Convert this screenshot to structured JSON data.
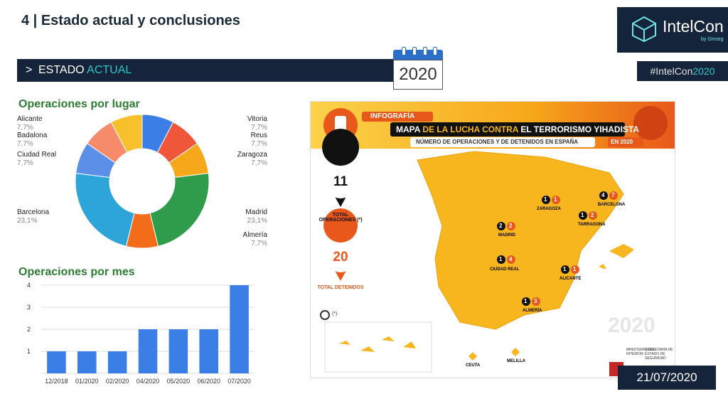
{
  "header": {
    "title": "4  |  Estado actual y conclusiones",
    "logo_name": "IntelCon",
    "logo_by": "by Ginseg"
  },
  "section_bar": {
    "chevron": ">",
    "label_white": "ESTADO ",
    "label_accent": "ACTUAL"
  },
  "hashtag": {
    "text": "#IntelCon",
    "year": "2020"
  },
  "calendar": {
    "year": "2020"
  },
  "pie": {
    "title": "Operaciones por lugar",
    "labels": [
      {
        "name": "Alicante",
        "pct": "7,7%"
      },
      {
        "name": "Badalona",
        "pct": "7,7%"
      },
      {
        "name": "Ciudad Real",
        "pct": "7,7%"
      },
      {
        "name": "Barcelona",
        "pct": "23,1%"
      },
      {
        "name": "Vitoria",
        "pct": "7,7%"
      },
      {
        "name": "Reus",
        "pct": "7,7%"
      },
      {
        "name": "Zaragoza",
        "pct": "7,7%"
      },
      {
        "name": "Madrid",
        "pct": "23,1%"
      },
      {
        "name": "Almería",
        "pct": "7,7%"
      }
    ]
  },
  "bars": {
    "title": "Operaciones por mes"
  },
  "map": {
    "infografia": "INFOGRAFÍA",
    "headline_a": "MAPA ",
    "headline_b": "DE LA LUCHA CONTRA ",
    "headline_c": "EL TERRORISMO YIHADISTA",
    "sub": "NÚMERO DE OPERACIONES Y DE DETENIDOS EN ESPAÑA",
    "sub_year": "EN 2020",
    "ops_num": "11",
    "ops_label": "TOTAL OPERACIONES (*)",
    "det_num": "20",
    "det_label": "TOTAL DETENIDOS",
    "note": "(*)",
    "big_year": "2020",
    "zaragoza": "ZARAGOZA",
    "barcelona": "BARCELONA",
    "tarragona": "TARRAGONA",
    "madrid": "MADRID",
    "ciudad_real": "CIUDAD REAL",
    "alicante": "ALICANTE",
    "almeria": "ALMERÍA",
    "ceuta": "CEUTA",
    "melilla": "MELILLA",
    "ministerio": "MINISTERIO DEL INTERIOR",
    "secretaria": "SECRETARÍA DE ESTADO DE SEGURIDAD",
    "pins": [
      {
        "key": "zaragoza",
        "ops": "1",
        "det": "1"
      },
      {
        "key": "barcelona",
        "ops": "4",
        "det": "7"
      },
      {
        "key": "tarragona",
        "ops": "1",
        "det": "2"
      },
      {
        "key": "madrid",
        "ops": "2",
        "det": "2"
      },
      {
        "key": "ciudad_real",
        "ops": "1",
        "det": "4"
      },
      {
        "key": "alicante",
        "ops": "1",
        "det": "1"
      },
      {
        "key": "almeria",
        "ops": "1",
        "det": "3"
      }
    ]
  },
  "date": "21/07/2020",
  "colors": {
    "navy": "#15243a",
    "teal": "#2ec5c9",
    "green_title": "#2e7d32",
    "bar_blue": "#3a7ee6",
    "map_yellow": "#f7b61e",
    "map_orange": "#e8581a"
  },
  "chart_data": [
    {
      "type": "pie",
      "title": "Operaciones por lugar",
      "categories": [
        "Vitoria",
        "Reus",
        "Zaragoza",
        "Madrid",
        "Almería",
        "Barcelona",
        "Ciudad Real",
        "Badalona",
        "Alicante"
      ],
      "values": [
        7.7,
        7.7,
        7.7,
        23.1,
        7.7,
        23.1,
        7.7,
        7.7,
        7.7
      ],
      "colors": [
        "#3a7ee6",
        "#f0563a",
        "#f7a81a",
        "#2e9c4a",
        "#f26c1a",
        "#2ea5d9",
        "#5b8fe8",
        "#f58b6a",
        "#f9c02e"
      ],
      "donut": true
    },
    {
      "type": "bar",
      "title": "Operaciones por mes",
      "categories": [
        "12/2018",
        "01/2020",
        "02/2020",
        "04/2020",
        "05/2020",
        "06/2020",
        "07/2020"
      ],
      "values": [
        1,
        1,
        1,
        2,
        2,
        2,
        4
      ],
      "ylim": [
        0,
        4
      ],
      "yticks": [
        1,
        2,
        3,
        4
      ],
      "grid": true
    }
  ]
}
